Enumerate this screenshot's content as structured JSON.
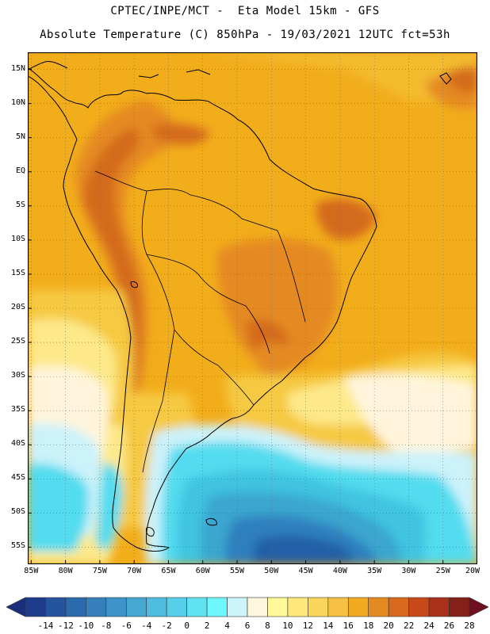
{
  "header": {
    "line1": "CPTEC/INPE/MCT -  Eta Model 15km - GFS",
    "line2": "Absolute Temperature (C) 850hPa - 19/03/2021 12UTC fct=53h"
  },
  "map": {
    "lat_labels": [
      "15N",
      "10N",
      "5N",
      "EQ",
      "5S",
      "10S",
      "15S",
      "20S",
      "25S",
      "30S",
      "35S",
      "40S",
      "45S",
      "50S",
      "55S"
    ],
    "lon_labels": [
      "85W",
      "80W",
      "75W",
      "70W",
      "65W",
      "60W",
      "55W",
      "50W",
      "45W",
      "40W",
      "35W",
      "30W",
      "25W",
      "20W"
    ],
    "lat_range": [
      -57.5,
      17.5
    ],
    "lon_range": [
      -85.5,
      -20.0
    ],
    "palette": {
      "warm_bg": "#f2ad1b",
      "warmer": "#e58a22",
      "hot": "#d46a1f",
      "hottest": "#b8471a",
      "mild": "#f6c943",
      "cool": "#fde98a",
      "cream": "#fff5dc",
      "pale_cyan": "#ccf2fa",
      "cyan": "#52dcef",
      "aqua": "#3fc4e0",
      "teal": "#3aa6cf",
      "blue": "#2f7fbe",
      "deep_blue": "#245ea6",
      "coast": "#000000",
      "grid": "#6b6b6b"
    }
  },
  "colorbar": {
    "labels": [
      "-14",
      "-12",
      "-10",
      "-8",
      "-6",
      "-4",
      "-2",
      "0",
      "2",
      "4",
      "6",
      "8",
      "10",
      "12",
      "14",
      "16",
      "18",
      "20",
      "22",
      "24",
      "26",
      "28"
    ],
    "colors": [
      "#1f3c8c",
      "#25549f",
      "#2b6aad",
      "#3580bc",
      "#3c94c8",
      "#45a8d3",
      "#4ebcdf",
      "#56d0ea",
      "#5fe3f2",
      "#6ef7ff",
      "#cdf4fb",
      "#fff6de",
      "#fff99a",
      "#ffe87a",
      "#fbd65c",
      "#f6c143",
      "#f1ab21",
      "#e58a22",
      "#d96a1d",
      "#c8481a",
      "#a9301a",
      "#83201a"
    ],
    "under_color": "#1a2e7a",
    "over_color": "#6e101f"
  }
}
